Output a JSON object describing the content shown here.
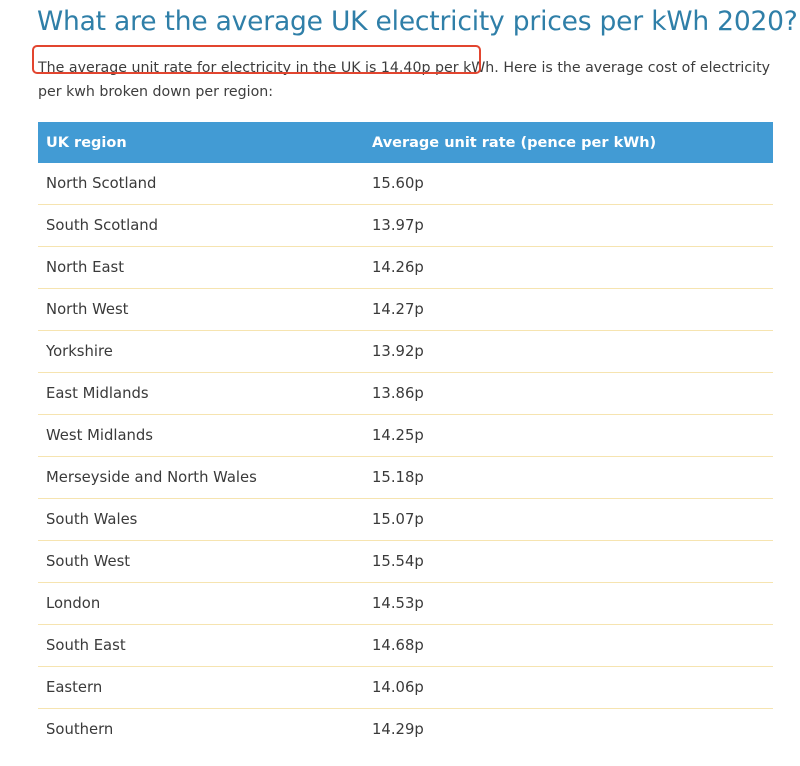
{
  "page": {
    "title": "What are the average UK electricity prices per kWh 2020?",
    "intro_highlight": "The average unit rate for electricity in the UK is 14.40p per kWh.",
    "intro_rest": " Here is the average cost of electricity per kwh broken down per region:",
    "highlight_color": "#e2452f",
    "accent_color": "#429bd4"
  },
  "table": {
    "headers": [
      "UK region",
      "Average unit rate (pence per kWh)"
    ],
    "rows": [
      {
        "region": "North Scotland",
        "rate": "15.60p"
      },
      {
        "region": "South Scotland",
        "rate": "13.97p"
      },
      {
        "region": "North East",
        "rate": "14.26p"
      },
      {
        "region": "North West",
        "rate": "14.27p"
      },
      {
        "region": "Yorkshire",
        "rate": "13.92p"
      },
      {
        "region": "East Midlands",
        "rate": "13.86p"
      },
      {
        "region": "West Midlands",
        "rate": "14.25p"
      },
      {
        "region": "Merseyside and North Wales",
        "rate": "15.18p"
      },
      {
        "region": "South Wales",
        "rate": "15.07p"
      },
      {
        "region": "South West",
        "rate": "15.54p"
      },
      {
        "region": "London",
        "rate": "14.53p"
      },
      {
        "region": "South East",
        "rate": "14.68p"
      },
      {
        "region": "Eastern",
        "rate": "14.06p"
      },
      {
        "region": "Southern",
        "rate": "14.29p"
      }
    ]
  }
}
